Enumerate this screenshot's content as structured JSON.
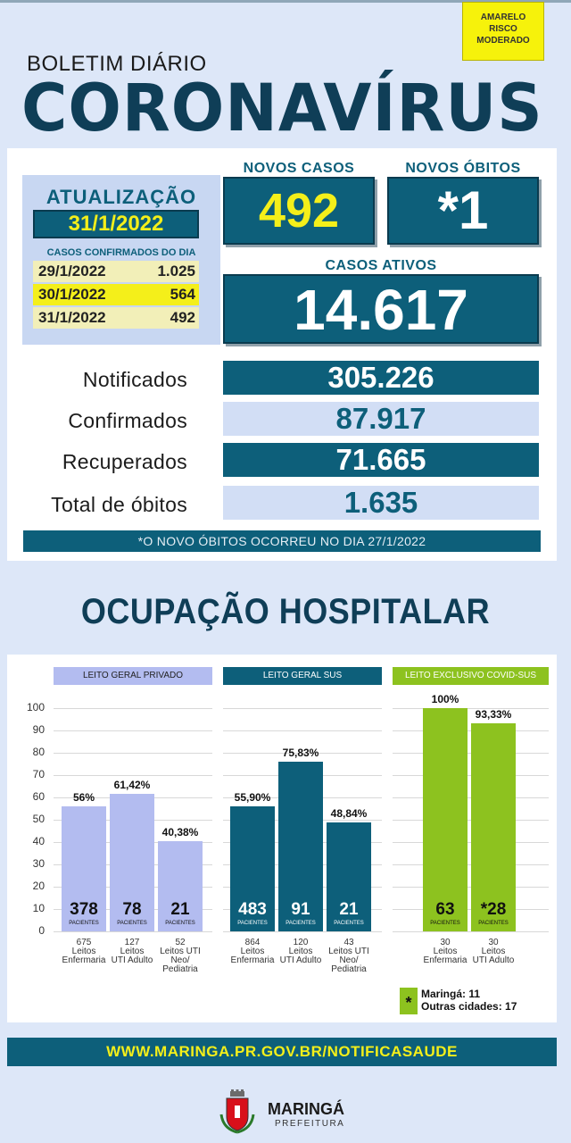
{
  "header": {
    "alert_badge": [
      "AMARELO",
      "RISCO",
      "MODERADO"
    ],
    "subtitle": "BOLETIM DIÁRIO",
    "title": "CORONAVÍRUS"
  },
  "update": {
    "label": "ATUALIZAÇÃO",
    "date": "31/1/2022",
    "confirmed_title": "CASOS CONFIRMADOS DO DIA",
    "rows": [
      {
        "date": "29/1/2022",
        "value": "1.025"
      },
      {
        "date": "30/1/2022",
        "value": "564"
      },
      {
        "date": "31/1/2022",
        "value": "492"
      }
    ]
  },
  "cards": {
    "novos_casos_label": "NOVOS CASOS",
    "novos_casos_value": "492",
    "novos_obitos_label": "NOVOS ÓBITOS",
    "novos_obitos_value": "*1",
    "casos_ativos_label": "CASOS ATIVOS",
    "casos_ativos_value": "14.617"
  },
  "stats": [
    {
      "label": "Notificados",
      "value": "305.226"
    },
    {
      "label": "Confirmados",
      "value": "87.917"
    },
    {
      "label": "Recuperados",
      "value": "71.665"
    },
    {
      "label": "Total de óbitos",
      "value": "1.635"
    }
  ],
  "note": "*O NOVO  ÓBITOS OCORREU NO DIA 27/1/2022",
  "section_title": "OCUPAÇÃO HOSPITALAR",
  "chart_data": {
    "type": "bar",
    "ylim": [
      0,
      100
    ],
    "yticks": [
      "100",
      "90",
      "80",
      "70",
      "60",
      "50",
      "40",
      "30",
      "20",
      "10",
      "0"
    ],
    "groups": [
      {
        "title": "LEITO GERAL PRIVADO",
        "color": "#b3bcf0",
        "head_bg": "#b3bcf0",
        "head_fg": "#222222",
        "bars": [
          {
            "pct_label": "56%",
            "value": 56,
            "count": "378",
            "count_label": "PACIENTES",
            "beds": "675",
            "cap_lines": [
              "Leitos",
              "Enfermaria"
            ]
          },
          {
            "pct_label": "61,42%",
            "value": 61.42,
            "count": "78",
            "count_label": "PACIENTES",
            "beds": "127",
            "cap_lines": [
              "Leitos",
              "UTI Adulto"
            ]
          },
          {
            "pct_label": "40,38%",
            "value": 40.38,
            "count": "21",
            "count_label": "PACIENTES",
            "beds": "52",
            "cap_lines": [
              "Leitos UTI",
              "Neo/",
              "Pediatria"
            ]
          }
        ]
      },
      {
        "title": "LEITO GERAL SUS",
        "color": "#0d5f7a",
        "head_bg": "#0d5f7a",
        "head_fg": "#ffffff",
        "bars": [
          {
            "pct_label": "55,90%",
            "value": 55.9,
            "count": "483",
            "count_label": "PACIENTES",
            "beds": "864",
            "cap_lines": [
              "Leitos",
              "Enfermaria"
            ]
          },
          {
            "pct_label": "75,83%",
            "value": 75.83,
            "count": "91",
            "count_label": "PACIENTES",
            "beds": "120",
            "cap_lines": [
              "Leitos",
              "UTI Adulto"
            ]
          },
          {
            "pct_label": "48,84%",
            "value": 48.84,
            "count": "21",
            "count_label": "PACIENTES",
            "beds": "43",
            "cap_lines": [
              "Leitos UTI",
              "Neo/",
              "Pediatria"
            ]
          }
        ]
      },
      {
        "title": "LEITO EXCLUSIVO COVID-SUS",
        "color": "#8dc21f",
        "head_bg": "#8dc21f",
        "head_fg": "#ffffff",
        "bars": [
          {
            "pct_label": "100%",
            "value": 100,
            "count": "63",
            "count_label": "PACIENTES",
            "beds": "30",
            "cap_lines": [
              "Leitos",
              "Enfermaria"
            ]
          },
          {
            "pct_label": "93,33%",
            "value": 93.33,
            "count": "*28",
            "count_label": "PACIENTES",
            "beds": "30",
            "cap_lines": [
              "Leitos",
              "UTI Adulto"
            ]
          }
        ]
      }
    ]
  },
  "legend": {
    "symbol": "*",
    "line1": "Maringá: 11",
    "line2": "Outras cidades: 17"
  },
  "footer": {
    "url": "WWW.MARINGA.PR.GOV.BR/NOTIFICASAUDE",
    "logo_name": "MARINGÁ",
    "logo_sub": "PREFEITURA"
  },
  "colors": {
    "teal": "#0d5f7a",
    "yellow": "#f4ef1a",
    "lavender": "#b3bcf0",
    "green": "#8dc21f"
  }
}
